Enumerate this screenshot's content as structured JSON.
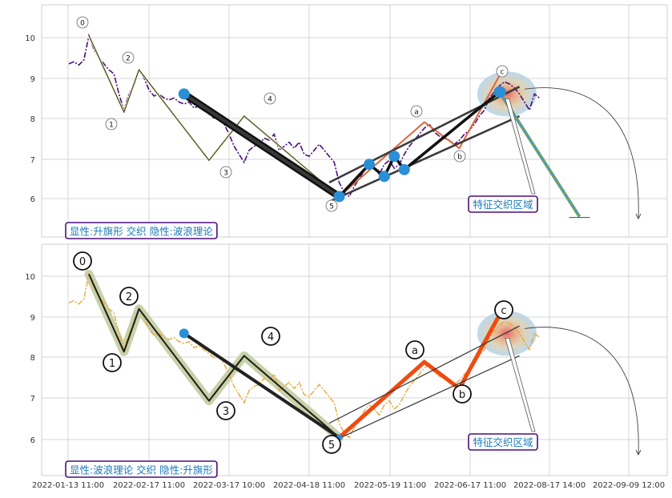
{
  "chart_data": [
    {
      "type": "line",
      "panel": "top",
      "annotation_box": "显性:升旗形 交织 隐性:波浪理论",
      "callout_label": "特征交织区域",
      "yticks": [
        6,
        7,
        8,
        9,
        10
      ],
      "ylim": [
        5.1,
        10.85
      ],
      "grid": true,
      "wave_labels": [
        {
          "text": "0",
          "x": 4.4,
          "y": 10.4
        },
        {
          "text": "1",
          "x": 18.2,
          "y": 7.9
        },
        {
          "text": "2",
          "x": 20.8,
          "y": 9.55
        },
        {
          "text": "3",
          "x": 67.8,
          "y": 6.7
        },
        {
          "text": "4",
          "x": 83.8,
          "y": 8.55
        },
        {
          "text": "5",
          "x": 108.5,
          "y": 5.85
        },
        {
          "text": "a",
          "x": 144.5,
          "y": 8.2
        },
        {
          "text": "b",
          "x": 161.8,
          "y": 7.1
        },
        {
          "text": "c",
          "x": 180.3,
          "y": 9.2
        }
      ],
      "series": [
        {
          "role": "price",
          "color": "#4b0f7a",
          "style": "dash-dot",
          "points": [
            [
              0,
              9.35
            ],
            [
              1,
              9.4
            ],
            [
              2,
              9.32
            ],
            [
              3,
              9.45
            ],
            [
              4,
              10.05
            ],
            [
              5,
              9.7
            ],
            [
              6,
              9.5
            ],
            [
              7,
              9.35
            ],
            [
              8,
              9.2
            ],
            [
              9,
              9.1
            ],
            [
              10,
              8.6
            ],
            [
              11,
              8.2
            ],
            [
              12,
              8.6
            ],
            [
              13,
              8.8
            ],
            [
              14,
              9.2
            ],
            [
              15,
              9.0
            ],
            [
              16,
              8.7
            ],
            [
              17,
              8.55
            ],
            [
              18,
              8.6
            ],
            [
              19,
              8.5
            ],
            [
              20,
              8.45
            ],
            [
              21,
              8.5
            ],
            [
              22,
              8.4
            ],
            [
              23,
              8.35
            ],
            [
              24,
              8.4
            ],
            [
              25,
              8.25
            ],
            [
              26,
              8.3
            ],
            [
              27,
              8.2
            ],
            [
              28,
              8.1
            ],
            [
              29,
              8.0
            ],
            [
              30,
              8.05
            ],
            [
              31,
              7.85
            ],
            [
              32,
              7.6
            ],
            [
              33,
              7.3
            ],
            [
              34,
              7.1
            ],
            [
              35,
              6.9
            ],
            [
              36,
              7.2
            ],
            [
              37,
              7.3
            ],
            [
              38,
              7.35
            ],
            [
              39,
              7.5
            ],
            [
              40,
              7.45
            ],
            [
              41,
              7.6
            ],
            [
              42,
              7.2
            ],
            [
              43,
              7.3
            ],
            [
              44,
              7.4
            ],
            [
              45,
              7.25
            ],
            [
              46,
              7.4
            ],
            [
              47,
              7.1
            ],
            [
              48,
              7.05
            ],
            [
              49,
              7.2
            ],
            [
              50,
              7.35
            ],
            [
              51,
              7.2
            ],
            [
              52,
              7.05
            ],
            [
              53,
              6.9
            ],
            [
              54,
              6.4
            ],
            [
              55,
              6.15
            ],
            [
              56,
              6.05
            ],
            [
              57,
              6.3
            ],
            [
              58,
              6.5
            ],
            [
              59,
              6.7
            ],
            [
              60,
              6.85
            ],
            [
              61,
              6.75
            ],
            [
              62,
              6.6
            ],
            [
              63,
              6.85
            ],
            [
              64,
              6.95
            ],
            [
              65,
              6.75
            ],
            [
              66,
              6.85
            ],
            [
              67,
              7.1
            ],
            [
              68,
              7.3
            ],
            [
              69,
              7.45
            ],
            [
              70,
              7.6
            ],
            [
              71,
              7.75
            ],
            [
              72,
              7.85
            ],
            [
              73,
              7.65
            ],
            [
              74,
              7.55
            ],
            [
              75,
              7.5
            ],
            [
              76,
              7.45
            ],
            [
              77,
              7.35
            ],
            [
              78,
              7.45
            ],
            [
              79,
              7.6
            ],
            [
              80,
              7.7
            ],
            [
              81,
              7.85
            ],
            [
              82,
              8.05
            ],
            [
              83,
              8.2
            ],
            [
              84,
              8.5
            ],
            [
              85,
              8.65
            ],
            [
              86,
              8.8
            ],
            [
              87,
              8.9
            ],
            [
              88,
              8.85
            ],
            [
              89,
              8.75
            ],
            [
              90,
              8.6
            ],
            [
              91,
              8.4
            ],
            [
              92,
              8.2
            ],
            [
              93,
              8.6
            ],
            [
              94,
              8.5
            ]
          ]
        },
        {
          "role": "wave-0-5",
          "color": "#1c1c1c",
          "style": "solid",
          "points": [
            [
              4,
              10.05
            ],
            [
              11,
              8.15
            ],
            [
              14,
              9.2
            ],
            [
              28,
              6.95
            ],
            [
              35,
              8.05
            ],
            [
              54,
              6.05
            ]
          ]
        },
        {
          "role": "wave-abc",
          "color": "#e0643a",
          "style": "solid",
          "points": [
            [
              54,
              6.05
            ],
            [
              71,
              7.9
            ],
            [
              78,
              7.25
            ],
            [
              86,
              9.05
            ]
          ]
        },
        {
          "role": "thick-line",
          "color": "#111111",
          "style": "solid",
          "points": [
            [
              23,
              8.6
            ],
            [
              54,
              6.05
            ]
          ]
        },
        {
          "role": "blue-zigzag",
          "color": "#111111",
          "style": "solid",
          "points": [
            [
              54,
              6.05
            ],
            [
              60,
              6.85
            ],
            [
              63,
              6.55
            ],
            [
              65,
              7.05
            ],
            [
              67,
              6.72
            ],
            [
              86,
              8.65
            ]
          ]
        },
        {
          "role": "channel-upper",
          "color": "#3a3a3a",
          "style": "solid",
          "points": [
            [
              52,
              6.4
            ],
            [
              90,
              8.78
            ]
          ]
        },
        {
          "role": "channel-lower",
          "color": "#3a3a3a",
          "style": "solid",
          "points": [
            [
              52,
              5.92
            ],
            [
              90,
              8.05
            ]
          ]
        },
        {
          "role": "projection",
          "color": "#3f9fd0",
          "style": "dashed",
          "points": [
            [
              86,
              8.65
            ],
            [
              102,
              5.55
            ]
          ]
        }
      ]
    },
    {
      "type": "line",
      "panel": "bottom",
      "annotation_box": "显性:波浪理论 交织 隐性:升旗形",
      "callout_label": "特征交织区域",
      "yticks": [
        6,
        7,
        8,
        9,
        10
      ],
      "ylim": [
        5.1,
        10.85
      ],
      "grid": true,
      "xtick_labels": [
        "2022-01-13 11:00",
        "2022-02-17 11:00",
        "2022-03-17 10:00",
        "2022-04-18 11:00",
        "2022-05-19 11:00",
        "2022-06-17 11:00",
        "2022-08-17 14:00",
        "2022-09-09 12:00"
      ],
      "wave_labels": [
        {
          "text": "0",
          "x": 4.4,
          "y": 10.4
        },
        {
          "text": "1",
          "x": 18.2,
          "y": 7.9
        },
        {
          "text": "2",
          "x": 20.8,
          "y": 9.55
        },
        {
          "text": "3",
          "x": 67.8,
          "y": 6.7
        },
        {
          "text": "4",
          "x": 83.8,
          "y": 8.55
        },
        {
          "text": "5",
          "x": 108.5,
          "y": 5.85
        },
        {
          "text": "a",
          "x": 144.5,
          "y": 8.2
        },
        {
          "text": "b",
          "x": 161.8,
          "y": 7.1
        },
        {
          "text": "c",
          "x": 180.3,
          "y": 9.2
        }
      ],
      "series": [
        {
          "role": "price",
          "color": "#e9a73a",
          "style": "dash-dot",
          "points": [
            [
              0,
              9.35
            ],
            [
              1,
              9.4
            ],
            [
              2,
              9.32
            ],
            [
              3,
              9.45
            ],
            [
              4,
              10.05
            ],
            [
              5,
              9.7
            ],
            [
              6,
              9.5
            ],
            [
              7,
              9.35
            ],
            [
              8,
              9.2
            ],
            [
              9,
              9.1
            ],
            [
              10,
              8.6
            ],
            [
              11,
              8.2
            ],
            [
              12,
              8.6
            ],
            [
              13,
              8.8
            ],
            [
              14,
              9.2
            ],
            [
              15,
              9.0
            ],
            [
              16,
              8.7
            ],
            [
              17,
              8.55
            ],
            [
              18,
              8.6
            ],
            [
              19,
              8.5
            ],
            [
              20,
              8.45
            ],
            [
              21,
              8.5
            ],
            [
              22,
              8.4
            ],
            [
              23,
              8.35
            ],
            [
              24,
              8.4
            ],
            [
              25,
              8.25
            ],
            [
              26,
              8.3
            ],
            [
              27,
              8.2
            ],
            [
              28,
              8.1
            ],
            [
              29,
              8.0
            ],
            [
              30,
              8.05
            ],
            [
              31,
              7.85
            ],
            [
              32,
              7.6
            ],
            [
              33,
              7.3
            ],
            [
              34,
              7.1
            ],
            [
              35,
              6.9
            ],
            [
              36,
              7.2
            ],
            [
              37,
              7.3
            ],
            [
              38,
              7.35
            ],
            [
              39,
              7.5
            ],
            [
              40,
              7.45
            ],
            [
              41,
              7.6
            ],
            [
              42,
              7.2
            ],
            [
              43,
              7.3
            ],
            [
              44,
              7.4
            ],
            [
              45,
              7.25
            ],
            [
              46,
              7.4
            ],
            [
              47,
              7.1
            ],
            [
              48,
              7.05
            ],
            [
              49,
              7.2
            ],
            [
              50,
              7.35
            ],
            [
              51,
              7.2
            ],
            [
              52,
              7.05
            ],
            [
              53,
              6.9
            ],
            [
              54,
              6.4
            ],
            [
              55,
              6.15
            ],
            [
              56,
              6.05
            ],
            [
              57,
              6.3
            ],
            [
              58,
              6.5
            ],
            [
              59,
              6.7
            ],
            [
              60,
              6.85
            ],
            [
              61,
              6.75
            ],
            [
              62,
              6.6
            ],
            [
              63,
              6.85
            ],
            [
              64,
              6.95
            ],
            [
              65,
              6.75
            ],
            [
              66,
              6.85
            ],
            [
              67,
              7.1
            ],
            [
              68,
              7.3
            ],
            [
              69,
              7.45
            ],
            [
              70,
              7.6
            ],
            [
              71,
              7.75
            ],
            [
              72,
              7.85
            ],
            [
              73,
              7.65
            ],
            [
              74,
              7.55
            ],
            [
              75,
              7.5
            ],
            [
              76,
              7.45
            ],
            [
              77,
              7.35
            ],
            [
              78,
              7.45
            ],
            [
              79,
              7.6
            ],
            [
              80,
              7.7
            ],
            [
              81,
              7.85
            ],
            [
              82,
              8.05
            ],
            [
              83,
              8.2
            ],
            [
              84,
              8.5
            ],
            [
              85,
              8.65
            ],
            [
              86,
              8.8
            ],
            [
              87,
              8.9
            ],
            [
              88,
              8.85
            ],
            [
              89,
              8.75
            ],
            [
              90,
              8.6
            ],
            [
              91,
              8.4
            ],
            [
              92,
              8.2
            ],
            [
              93,
              8.6
            ],
            [
              94,
              8.5
            ]
          ]
        },
        {
          "role": "wave-0-5",
          "color": "#1c1c1c",
          "style": "solid",
          "points": [
            [
              4,
              10.05
            ],
            [
              11,
              8.15
            ],
            [
              14,
              9.2
            ],
            [
              28,
              6.95
            ],
            [
              35,
              8.05
            ],
            [
              54,
              6.05
            ]
          ]
        },
        {
          "role": "wave-abc",
          "color": "#f04a10",
          "style": "solid",
          "points": [
            [
              54,
              6.05
            ],
            [
              71,
              7.9
            ],
            [
              78,
              7.25
            ],
            [
              86,
              9.05
            ]
          ]
        },
        {
          "role": "flag-pole",
          "color": "#222222",
          "style": "solid",
          "points": [
            [
              23,
              8.6
            ],
            [
              54,
              6.05
            ]
          ]
        },
        {
          "role": "channel-upper",
          "color": "#333333",
          "style": "solid",
          "points": [
            [
              52,
              6.4
            ],
            [
              90,
              8.78
            ]
          ]
        },
        {
          "role": "channel-lower",
          "color": "#333333",
          "style": "solid",
          "points": [
            [
              52,
              5.92
            ],
            [
              90,
              8.05
            ]
          ]
        }
      ]
    }
  ]
}
